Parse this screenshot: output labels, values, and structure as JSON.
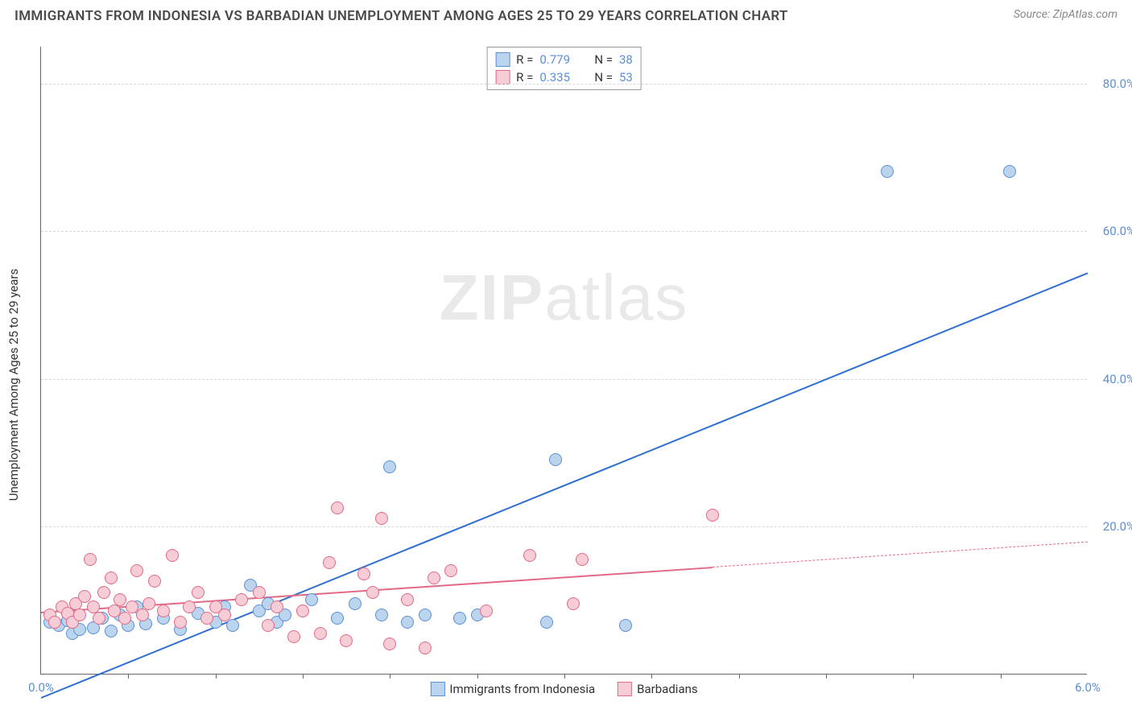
{
  "header": {
    "title": "IMMIGRANTS FROM INDONESIA VS BARBADIAN UNEMPLOYMENT AMONG AGES 25 TO 29 YEARS CORRELATION CHART",
    "source": "Source: ZipAtlas.com"
  },
  "watermark": {
    "left": "ZIP",
    "right": "atlas"
  },
  "chart": {
    "type": "scatter",
    "y_axis_label": "Unemployment Among Ages 25 to 29 years",
    "xlim": [
      0,
      6.0
    ],
    "ylim": [
      0,
      85
    ],
    "x_ticks": [
      0.0,
      6.0
    ],
    "x_tick_labels": [
      "0.0%",
      "6.0%"
    ],
    "x_minor_ticks": [
      0.5,
      1.0,
      1.5,
      2.0,
      2.5,
      3.0,
      3.5,
      4.0,
      4.5,
      5.0,
      5.5
    ],
    "y_ticks": [
      20.0,
      40.0,
      60.0,
      80.0
    ],
    "y_tick_labels": [
      "20.0%",
      "40.0%",
      "60.0%",
      "80.0%"
    ],
    "grid_color": "#d8d8d8",
    "axis_color": "#666666",
    "background_color": "#ffffff",
    "tick_label_color": "#5b8fd6",
    "marker_radius": 8,
    "series": [
      {
        "name": "Immigrants from Indonesia",
        "key": "indonesia",
        "fill": "#bcd5ef",
        "stroke": "#5b8fd6",
        "r_value": "0.779",
        "n_value": "38",
        "trend": {
          "x1": 0.0,
          "y1": -3.0,
          "x2": 6.0,
          "y2": 54.5,
          "solid_to_x": 6.0,
          "color": "#2f6fd0",
          "width": 2.5
        },
        "points": [
          [
            0.05,
            7.0
          ],
          [
            0.1,
            6.5
          ],
          [
            0.15,
            7.2
          ],
          [
            0.18,
            5.5
          ],
          [
            0.22,
            6.0
          ],
          [
            0.3,
            6.2
          ],
          [
            0.35,
            7.5
          ],
          [
            0.4,
            5.8
          ],
          [
            0.45,
            8.0
          ],
          [
            0.5,
            6.5
          ],
          [
            0.55,
            9.0
          ],
          [
            0.6,
            6.8
          ],
          [
            0.7,
            7.5
          ],
          [
            0.8,
            6.0
          ],
          [
            0.9,
            8.2
          ],
          [
            1.0,
            7.0
          ],
          [
            1.05,
            9.0
          ],
          [
            1.1,
            6.5
          ],
          [
            1.2,
            12.0
          ],
          [
            1.25,
            8.5
          ],
          [
            1.3,
            9.5
          ],
          [
            1.35,
            7.0
          ],
          [
            1.4,
            8.0
          ],
          [
            1.55,
            10.0
          ],
          [
            1.7,
            7.5
          ],
          [
            1.8,
            9.5
          ],
          [
            1.95,
            8.0
          ],
          [
            2.0,
            28.0
          ],
          [
            2.1,
            7.0
          ],
          [
            2.2,
            8.0
          ],
          [
            2.4,
            7.5
          ],
          [
            2.5,
            8.0
          ],
          [
            2.9,
            7.0
          ],
          [
            2.95,
            29.0
          ],
          [
            3.35,
            6.5
          ],
          [
            4.85,
            68.0
          ],
          [
            5.55,
            68.0
          ]
        ]
      },
      {
        "name": "Barbadians",
        "key": "barbadians",
        "fill": "#f6cdd6",
        "stroke": "#e26a86",
        "r_value": "0.335",
        "n_value": "53",
        "trend": {
          "x1": 0.0,
          "y1": 8.5,
          "x2": 6.0,
          "y2": 18.0,
          "solid_to_x": 3.85,
          "color": "#e26a86",
          "width": 2
        },
        "points": [
          [
            0.05,
            8.0
          ],
          [
            0.08,
            7.0
          ],
          [
            0.12,
            9.0
          ],
          [
            0.15,
            8.2
          ],
          [
            0.18,
            7.0
          ],
          [
            0.2,
            9.5
          ],
          [
            0.22,
            8.0
          ],
          [
            0.25,
            10.5
          ],
          [
            0.28,
            15.5
          ],
          [
            0.3,
            9.0
          ],
          [
            0.33,
            7.5
          ],
          [
            0.36,
            11.0
          ],
          [
            0.4,
            13.0
          ],
          [
            0.42,
            8.5
          ],
          [
            0.45,
            10.0
          ],
          [
            0.48,
            7.5
          ],
          [
            0.52,
            9.0
          ],
          [
            0.55,
            14.0
          ],
          [
            0.58,
            8.0
          ],
          [
            0.62,
            9.5
          ],
          [
            0.65,
            12.5
          ],
          [
            0.7,
            8.5
          ],
          [
            0.75,
            16.0
          ],
          [
            0.8,
            7.0
          ],
          [
            0.85,
            9.0
          ],
          [
            0.9,
            11.0
          ],
          [
            0.95,
            7.5
          ],
          [
            1.0,
            9.0
          ],
          [
            1.05,
            8.0
          ],
          [
            1.15,
            10.0
          ],
          [
            1.25,
            11.0
          ],
          [
            1.3,
            6.5
          ],
          [
            1.35,
            9.0
          ],
          [
            1.45,
            5.0
          ],
          [
            1.5,
            8.5
          ],
          [
            1.6,
            5.5
          ],
          [
            1.65,
            15.0
          ],
          [
            1.7,
            22.5
          ],
          [
            1.75,
            4.5
          ],
          [
            1.85,
            13.5
          ],
          [
            1.9,
            11.0
          ],
          [
            1.95,
            21.0
          ],
          [
            2.0,
            4.0
          ],
          [
            2.1,
            10.0
          ],
          [
            2.2,
            3.5
          ],
          [
            2.25,
            13.0
          ],
          [
            2.35,
            14.0
          ],
          [
            2.55,
            8.5
          ],
          [
            2.8,
            16.0
          ],
          [
            3.05,
            9.5
          ],
          [
            3.1,
            15.5
          ],
          [
            3.85,
            21.5
          ]
        ]
      }
    ],
    "legend_bottom": [
      {
        "label": "Immigrants from Indonesia",
        "fill": "#bcd5ef",
        "stroke": "#5b8fd6"
      },
      {
        "label": "Barbadians",
        "fill": "#f6cdd6",
        "stroke": "#e26a86"
      }
    ]
  }
}
